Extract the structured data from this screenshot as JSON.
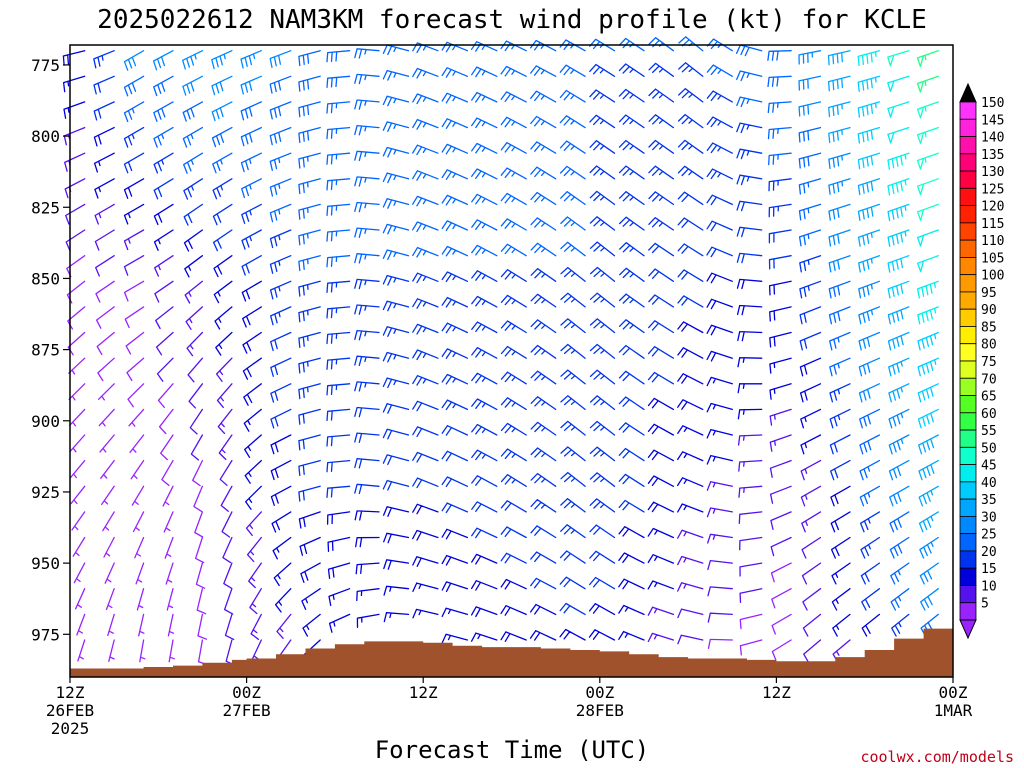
{
  "chart_data": {
    "type": "wind-barb-profile",
    "title": "2025022612 NAM3KM forecast wind profile (kt) for KCLE",
    "xlabel": "Forecast Time (UTC)",
    "ylabel": "",
    "credit": "coolwx.com/models",
    "y_axis": {
      "reversed": true,
      "range": [
        990,
        768
      ],
      "ticks": [
        {
          "value": 775,
          "label": "775"
        },
        {
          "value": 800,
          "label": "800"
        },
        {
          "value": 825,
          "label": "825"
        },
        {
          "value": 850,
          "label": "850"
        },
        {
          "value": 875,
          "label": "875"
        },
        {
          "value": 900,
          "label": "900"
        },
        {
          "value": 925,
          "label": "925"
        },
        {
          "value": 950,
          "label": "950"
        },
        {
          "value": 975,
          "label": "975"
        }
      ]
    },
    "x_axis": {
      "range_hours": [
        0,
        60
      ],
      "ticks": [
        {
          "hour": 0,
          "lines": [
            "12Z",
            "26FEB",
            "2025"
          ]
        },
        {
          "hour": 12,
          "lines": [
            "00Z",
            "27FEB"
          ]
        },
        {
          "hour": 24,
          "lines": [
            "12Z"
          ]
        },
        {
          "hour": 36,
          "lines": [
            "00Z",
            "28FEB"
          ]
        },
        {
          "hour": 48,
          "lines": [
            "12Z"
          ]
        },
        {
          "hour": 60,
          "lines": [
            "00Z",
            "1MAR"
          ]
        }
      ]
    },
    "barb_levels_hpa": [
      770,
      779,
      788,
      797,
      806,
      815,
      824,
      833,
      842,
      851,
      860,
      869,
      878,
      887,
      896,
      905,
      914,
      923,
      932,
      941,
      950,
      959,
      968,
      977,
      986
    ],
    "barb_hours": [
      1,
      3,
      5,
      7,
      9,
      11,
      13,
      15,
      17,
      19,
      21,
      23,
      25,
      27,
      29,
      31,
      33,
      35,
      37,
      39,
      41,
      43,
      45,
      47,
      49,
      51,
      53,
      55,
      57,
      59
    ],
    "wind_keyframes": [
      {
        "hour": 0,
        "levels": [
          [
            770,
            260,
            15
          ],
          [
            850,
            230,
            8
          ],
          [
            925,
            220,
            5
          ],
          [
            975,
            200,
            5
          ]
        ]
      },
      {
        "hour": 5,
        "levels": [
          [
            770,
            240,
            30
          ],
          [
            850,
            240,
            10
          ],
          [
            925,
            210,
            5
          ],
          [
            975,
            190,
            5
          ]
        ]
      },
      {
        "hour": 10,
        "levels": [
          [
            770,
            245,
            35
          ],
          [
            850,
            230,
            15
          ],
          [
            925,
            200,
            10
          ],
          [
            975,
            190,
            10
          ]
        ]
      },
      {
        "hour": 16,
        "levels": [
          [
            770,
            250,
            30
          ],
          [
            850,
            250,
            25
          ],
          [
            925,
            250,
            20
          ],
          [
            975,
            220,
            15
          ]
        ]
      },
      {
        "hour": 24,
        "levels": [
          [
            770,
            290,
            25
          ],
          [
            850,
            290,
            25
          ],
          [
            925,
            290,
            20
          ],
          [
            975,
            280,
            15
          ]
        ]
      },
      {
        "hour": 36,
        "levels": [
          [
            770,
            300,
            25
          ],
          [
            850,
            310,
            25
          ],
          [
            925,
            310,
            25
          ],
          [
            975,
            300,
            20
          ]
        ]
      },
      {
        "hour": 44,
        "levels": [
          [
            770,
            310,
            25
          ],
          [
            850,
            300,
            20
          ],
          [
            925,
            290,
            15
          ],
          [
            975,
            280,
            10
          ]
        ]
      },
      {
        "hour": 50,
        "levels": [
          [
            770,
            260,
            30
          ],
          [
            850,
            250,
            20
          ],
          [
            925,
            240,
            10
          ],
          [
            975,
            230,
            8
          ]
        ]
      },
      {
        "hour": 60,
        "levels": [
          [
            770,
            250,
            60
          ],
          [
            850,
            250,
            50
          ],
          [
            925,
            240,
            40
          ],
          [
            975,
            230,
            30
          ]
        ]
      }
    ],
    "terrain": {
      "hours": [
        0,
        1,
        3,
        5,
        7,
        9,
        11,
        12,
        14,
        16,
        18,
        20,
        22,
        24,
        26,
        28,
        30,
        32,
        34,
        36,
        38,
        40,
        42,
        44,
        46,
        48,
        50,
        52,
        54,
        56,
        58,
        60
      ],
      "surface_hpa": [
        987,
        987,
        987,
        986.5,
        986,
        985,
        984,
        983.5,
        982,
        980,
        978.5,
        977.5,
        977.5,
        978,
        979,
        979.5,
        979.5,
        980,
        980.5,
        981,
        982,
        983,
        983.5,
        983.5,
        984,
        984.5,
        984.5,
        983,
        980.5,
        976.5,
        973,
        971.5
      ],
      "color": "#a0522d"
    },
    "colorbar": {
      "values": [
        150,
        145,
        140,
        135,
        130,
        125,
        120,
        115,
        110,
        105,
        100,
        95,
        90,
        85,
        80,
        75,
        70,
        65,
        60,
        55,
        50,
        45,
        40,
        35,
        30,
        25,
        20,
        15,
        10,
        5
      ],
      "labels": [
        "150",
        "145",
        "140",
        "135",
        "130",
        "125",
        "120",
        "115",
        "110",
        "105",
        "100",
        "95",
        "90",
        "85",
        "80",
        "75",
        "70",
        "65",
        "60",
        "55",
        "50",
        "45",
        "40",
        "35",
        "30",
        "25",
        "20",
        "15",
        "10",
        "5"
      ],
      "colors": [
        "#ff33ff",
        "#ff22dd",
        "#ff10aa",
        "#ff0077",
        "#ff0044",
        "#ff1010",
        "#ff2200",
        "#ff4400",
        "#ff6600",
        "#ff8800",
        "#ff9900",
        "#ffaa00",
        "#ffcc00",
        "#ffee00",
        "#ffff22",
        "#ddff22",
        "#99ff22",
        "#55ff22",
        "#33ff44",
        "#22ff88",
        "#11ffcc",
        "#00eeee",
        "#00ccff",
        "#00a6ff",
        "#0088ff",
        "#0066ff",
        "#0033ee",
        "#0000dd",
        "#5511ee",
        "#9922ff"
      ],
      "top_arrow_color": "#000000",
      "bottom_arrow_color": "#9922ff"
    }
  }
}
